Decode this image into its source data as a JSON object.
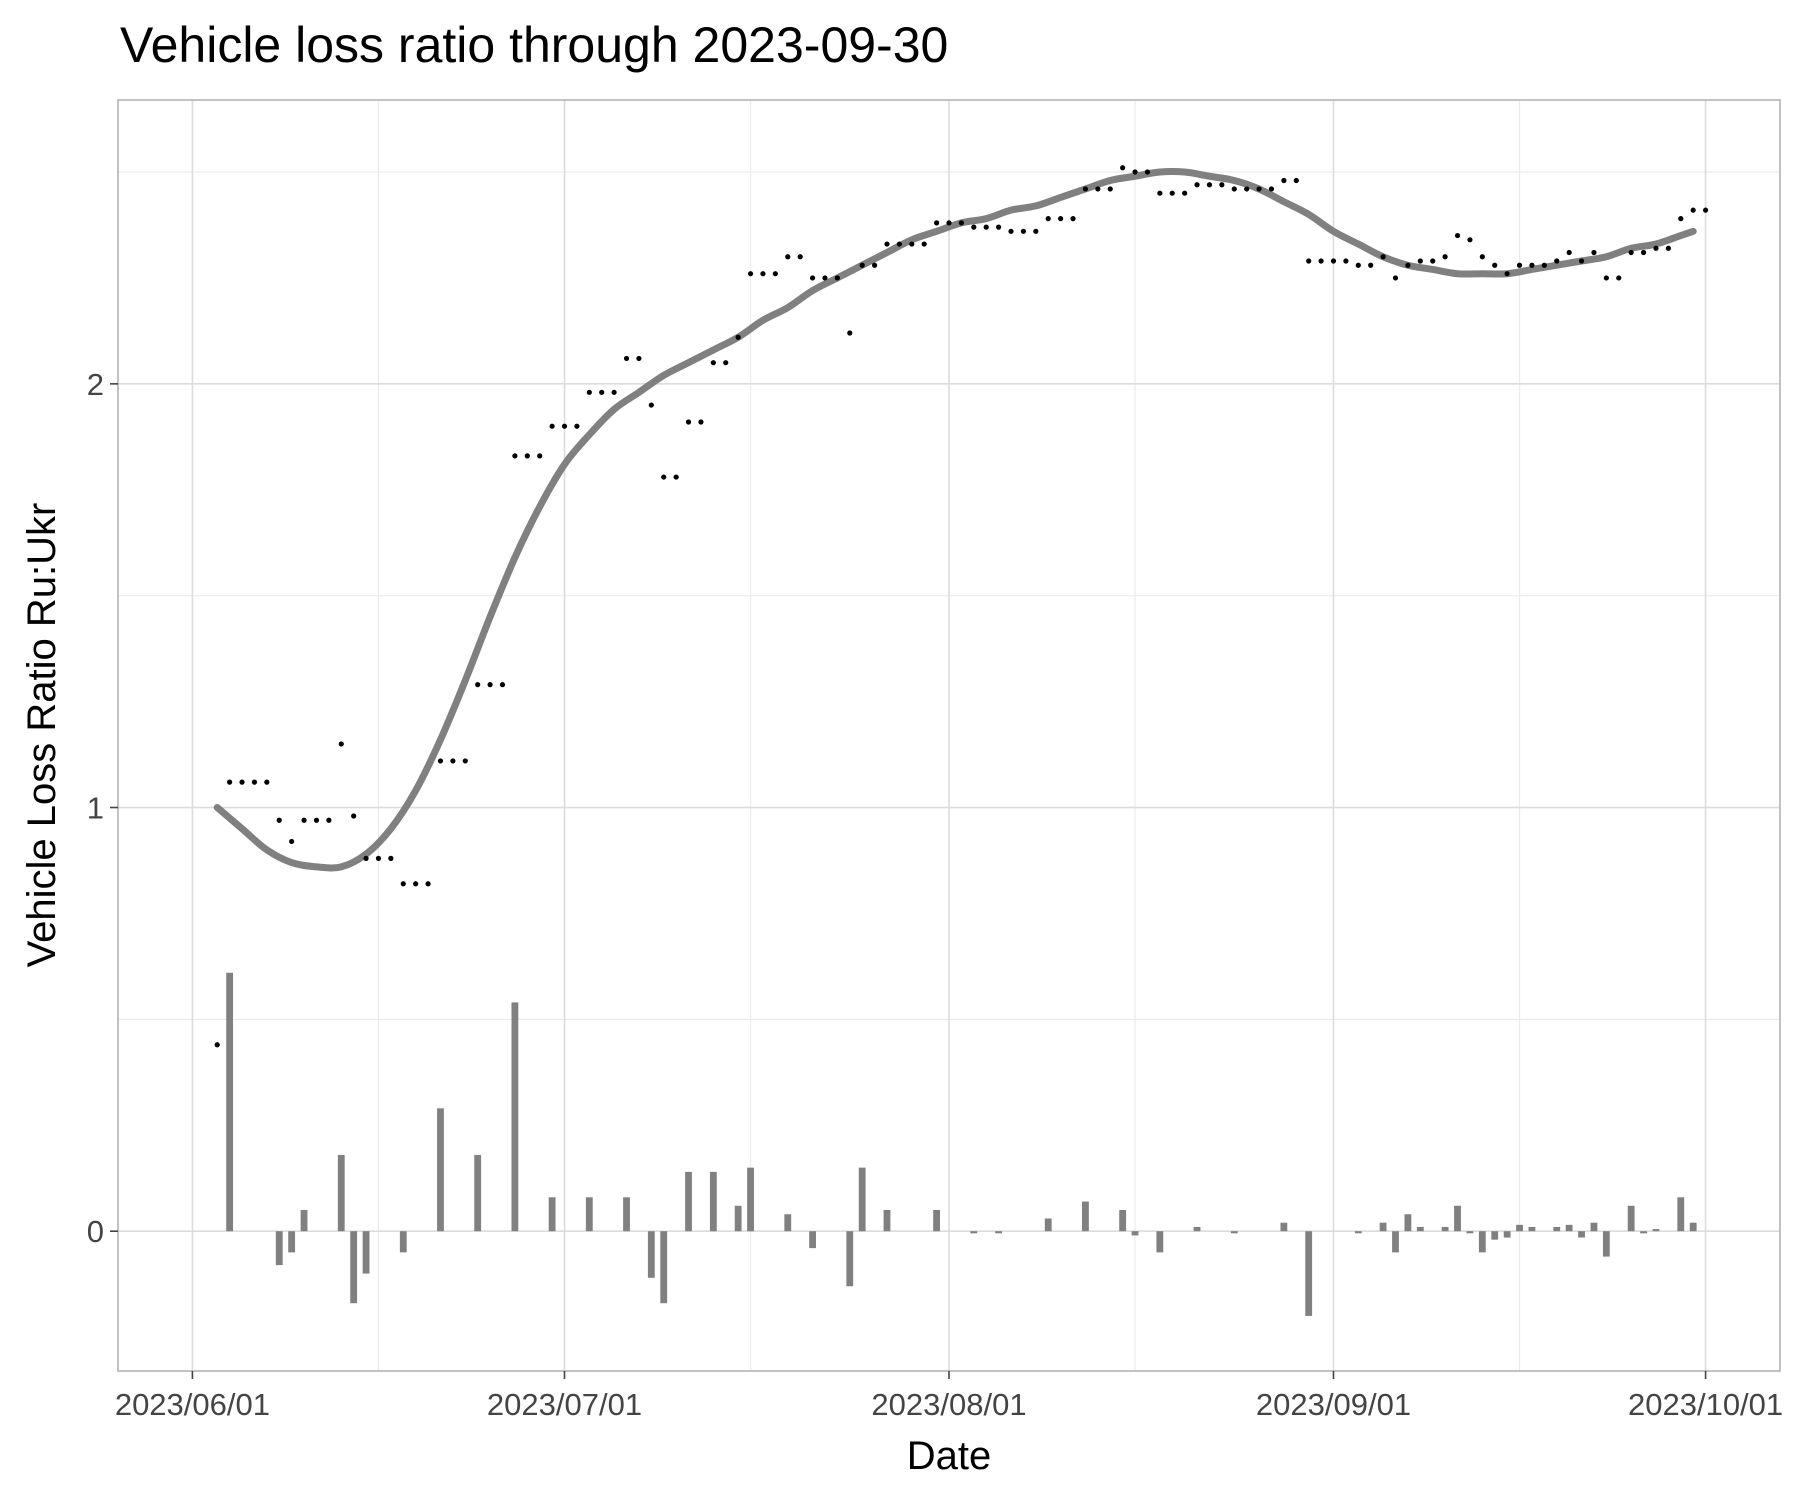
{
  "chart_data": {
    "type": "line",
    "title": "Vehicle loss ratio through 2023-09-30",
    "xlabel": "Date",
    "ylabel": "Vehicle Loss Ratio Ru:Ukr",
    "x_range": [
      "2023-05-26",
      "2023-10-07"
    ],
    "x_ticks": [
      {
        "date": "2023-06-01",
        "label": "2023/06/01"
      },
      {
        "date": "2023-07-01",
        "label": "2023/07/01"
      },
      {
        "date": "2023-08-01",
        "label": "2023/08/01"
      },
      {
        "date": "2023-09-01",
        "label": "2023/09/01"
      },
      {
        "date": "2023-10-01",
        "label": "2023/10/01"
      }
    ],
    "x_minor_ticks": [
      "2023-06-16",
      "2023-07-16",
      "2023-08-16",
      "2023-09-16"
    ],
    "ylim": [
      -0.33,
      2.67
    ],
    "y_ticks": [
      0,
      1,
      2
    ],
    "y_minor_ticks": [
      0.5,
      1.5,
      2.5
    ],
    "grid": true,
    "legend": "none",
    "colors": {
      "trend": "#808080",
      "bars": "#808080",
      "points": "#000000"
    },
    "series": [
      {
        "kind": "points",
        "data": [
          [
            "2023-06-03",
            0.44
          ],
          [
            "2023-06-04",
            1.06
          ],
          [
            "2023-06-05",
            1.06
          ],
          [
            "2023-06-06",
            1.06
          ],
          [
            "2023-06-07",
            1.06
          ],
          [
            "2023-06-08",
            0.97
          ],
          [
            "2023-06-09",
            0.92
          ],
          [
            "2023-06-10",
            0.97
          ],
          [
            "2023-06-11",
            0.97
          ],
          [
            "2023-06-12",
            0.97
          ],
          [
            "2023-06-13",
            1.15
          ],
          [
            "2023-06-14",
            0.98
          ],
          [
            "2023-06-15",
            0.88
          ],
          [
            "2023-06-16",
            0.88
          ],
          [
            "2023-06-17",
            0.88
          ],
          [
            "2023-06-18",
            0.82
          ],
          [
            "2023-06-19",
            0.82
          ],
          [
            "2023-06-20",
            0.82
          ],
          [
            "2023-06-21",
            1.11
          ],
          [
            "2023-06-22",
            1.11
          ],
          [
            "2023-06-23",
            1.11
          ],
          [
            "2023-06-24",
            1.29
          ],
          [
            "2023-06-25",
            1.29
          ],
          [
            "2023-06-26",
            1.29
          ],
          [
            "2023-06-27",
            1.83
          ],
          [
            "2023-06-28",
            1.83
          ],
          [
            "2023-06-29",
            1.83
          ],
          [
            "2023-06-30",
            1.9
          ],
          [
            "2023-07-01",
            1.9
          ],
          [
            "2023-07-02",
            1.9
          ],
          [
            "2023-07-03",
            1.98
          ],
          [
            "2023-07-04",
            1.98
          ],
          [
            "2023-07-05",
            1.98
          ],
          [
            "2023-07-06",
            2.06
          ],
          [
            "2023-07-07",
            2.06
          ],
          [
            "2023-07-08",
            1.95
          ],
          [
            "2023-07-09",
            1.78
          ],
          [
            "2023-07-10",
            1.78
          ],
          [
            "2023-07-11",
            1.91
          ],
          [
            "2023-07-12",
            1.91
          ],
          [
            "2023-07-13",
            2.05
          ],
          [
            "2023-07-14",
            2.05
          ],
          [
            "2023-07-15",
            2.11
          ],
          [
            "2023-07-16",
            2.26
          ],
          [
            "2023-07-17",
            2.26
          ],
          [
            "2023-07-18",
            2.26
          ],
          [
            "2023-07-19",
            2.3
          ],
          [
            "2023-07-20",
            2.3
          ],
          [
            "2023-07-21",
            2.25
          ],
          [
            "2023-07-22",
            2.25
          ],
          [
            "2023-07-23",
            2.25
          ],
          [
            "2023-07-24",
            2.12
          ],
          [
            "2023-07-25",
            2.28
          ],
          [
            "2023-07-26",
            2.28
          ],
          [
            "2023-07-27",
            2.33
          ],
          [
            "2023-07-28",
            2.33
          ],
          [
            "2023-07-29",
            2.33
          ],
          [
            "2023-07-30",
            2.33
          ],
          [
            "2023-07-31",
            2.38
          ],
          [
            "2023-08-01",
            2.38
          ],
          [
            "2023-08-02",
            2.38
          ],
          [
            "2023-08-03",
            2.37
          ],
          [
            "2023-08-04",
            2.37
          ],
          [
            "2023-08-05",
            2.37
          ],
          [
            "2023-08-06",
            2.36
          ],
          [
            "2023-08-07",
            2.36
          ],
          [
            "2023-08-08",
            2.36
          ],
          [
            "2023-08-09",
            2.39
          ],
          [
            "2023-08-10",
            2.39
          ],
          [
            "2023-08-11",
            2.39
          ],
          [
            "2023-08-12",
            2.46
          ],
          [
            "2023-08-13",
            2.46
          ],
          [
            "2023-08-14",
            2.46
          ],
          [
            "2023-08-15",
            2.51
          ],
          [
            "2023-08-16",
            2.5
          ],
          [
            "2023-08-17",
            2.5
          ],
          [
            "2023-08-18",
            2.45
          ],
          [
            "2023-08-19",
            2.45
          ],
          [
            "2023-08-20",
            2.45
          ],
          [
            "2023-08-21",
            2.47
          ],
          [
            "2023-08-22",
            2.47
          ],
          [
            "2023-08-23",
            2.47
          ],
          [
            "2023-08-24",
            2.46
          ],
          [
            "2023-08-25",
            2.46
          ],
          [
            "2023-08-26",
            2.46
          ],
          [
            "2023-08-27",
            2.46
          ],
          [
            "2023-08-28",
            2.48
          ],
          [
            "2023-08-29",
            2.48
          ],
          [
            "2023-08-30",
            2.29
          ],
          [
            "2023-08-31",
            2.29
          ],
          [
            "2023-09-01",
            2.29
          ],
          [
            "2023-09-02",
            2.29
          ],
          [
            "2023-09-03",
            2.28
          ],
          [
            "2023-09-04",
            2.28
          ],
          [
            "2023-09-05",
            2.3
          ],
          [
            "2023-09-06",
            2.25
          ],
          [
            "2023-09-07",
            2.28
          ],
          [
            "2023-09-08",
            2.29
          ],
          [
            "2023-09-09",
            2.29
          ],
          [
            "2023-09-10",
            2.3
          ],
          [
            "2023-09-11",
            2.35
          ],
          [
            "2023-09-12",
            2.34
          ],
          [
            "2023-09-13",
            2.3
          ],
          [
            "2023-09-14",
            2.28
          ],
          [
            "2023-09-15",
            2.26
          ],
          [
            "2023-09-16",
            2.28
          ],
          [
            "2023-09-17",
            2.28
          ],
          [
            "2023-09-18",
            2.28
          ],
          [
            "2023-09-19",
            2.29
          ],
          [
            "2023-09-20",
            2.31
          ],
          [
            "2023-09-21",
            2.29
          ],
          [
            "2023-09-22",
            2.31
          ],
          [
            "2023-09-23",
            2.25
          ],
          [
            "2023-09-24",
            2.25
          ],
          [
            "2023-09-25",
            2.31
          ],
          [
            "2023-09-26",
            2.31
          ],
          [
            "2023-09-27",
            2.32
          ],
          [
            "2023-09-28",
            2.32
          ],
          [
            "2023-09-29",
            2.39
          ],
          [
            "2023-09-30",
            2.41
          ],
          [
            "2023-10-01",
            2.41
          ]
        ]
      },
      {
        "kind": "trend",
        "data": [
          [
            "2023-06-03",
            1.0
          ],
          [
            "2023-06-05",
            0.95
          ],
          [
            "2023-06-07",
            0.9
          ],
          [
            "2023-06-09",
            0.87
          ],
          [
            "2023-06-11",
            0.86
          ],
          [
            "2023-06-13",
            0.86
          ],
          [
            "2023-06-15",
            0.89
          ],
          [
            "2023-06-17",
            0.95
          ],
          [
            "2023-06-19",
            1.04
          ],
          [
            "2023-06-21",
            1.16
          ],
          [
            "2023-06-23",
            1.3
          ],
          [
            "2023-06-25",
            1.45
          ],
          [
            "2023-06-27",
            1.59
          ],
          [
            "2023-06-29",
            1.71
          ],
          [
            "2023-07-01",
            1.81
          ],
          [
            "2023-07-03",
            1.88
          ],
          [
            "2023-07-05",
            1.94
          ],
          [
            "2023-07-07",
            1.98
          ],
          [
            "2023-07-09",
            2.02
          ],
          [
            "2023-07-11",
            2.05
          ],
          [
            "2023-07-13",
            2.08
          ],
          [
            "2023-07-15",
            2.11
          ],
          [
            "2023-07-17",
            2.15
          ],
          [
            "2023-07-19",
            2.18
          ],
          [
            "2023-07-21",
            2.22
          ],
          [
            "2023-07-23",
            2.25
          ],
          [
            "2023-07-25",
            2.28
          ],
          [
            "2023-07-27",
            2.31
          ],
          [
            "2023-07-29",
            2.34
          ],
          [
            "2023-07-31",
            2.36
          ],
          [
            "2023-08-02",
            2.38
          ],
          [
            "2023-08-04",
            2.39
          ],
          [
            "2023-08-06",
            2.41
          ],
          [
            "2023-08-08",
            2.42
          ],
          [
            "2023-08-10",
            2.44
          ],
          [
            "2023-08-12",
            2.46
          ],
          [
            "2023-08-14",
            2.48
          ],
          [
            "2023-08-16",
            2.49
          ],
          [
            "2023-08-18",
            2.5
          ],
          [
            "2023-08-20",
            2.5
          ],
          [
            "2023-08-22",
            2.49
          ],
          [
            "2023-08-24",
            2.48
          ],
          [
            "2023-08-26",
            2.46
          ],
          [
            "2023-08-28",
            2.43
          ],
          [
            "2023-08-30",
            2.4
          ],
          [
            "2023-09-01",
            2.36
          ],
          [
            "2023-09-03",
            2.33
          ],
          [
            "2023-09-05",
            2.3
          ],
          [
            "2023-09-07",
            2.28
          ],
          [
            "2023-09-09",
            2.27
          ],
          [
            "2023-09-11",
            2.26
          ],
          [
            "2023-09-13",
            2.26
          ],
          [
            "2023-09-15",
            2.26
          ],
          [
            "2023-09-17",
            2.27
          ],
          [
            "2023-09-19",
            2.28
          ],
          [
            "2023-09-21",
            2.29
          ],
          [
            "2023-09-23",
            2.3
          ],
          [
            "2023-09-25",
            2.32
          ],
          [
            "2023-09-27",
            2.33
          ],
          [
            "2023-09-29",
            2.35
          ],
          [
            "2023-09-30",
            2.36
          ]
        ]
      },
      {
        "kind": "bars",
        "data": [
          [
            "2023-06-04",
            0.61
          ],
          [
            "2023-06-08",
            -0.08
          ],
          [
            "2023-06-09",
            -0.05
          ],
          [
            "2023-06-10",
            0.05
          ],
          [
            "2023-06-13",
            0.18
          ],
          [
            "2023-06-14",
            -0.17
          ],
          [
            "2023-06-15",
            -0.1
          ],
          [
            "2023-06-18",
            -0.05
          ],
          [
            "2023-06-21",
            0.29
          ],
          [
            "2023-06-24",
            0.18
          ],
          [
            "2023-06-27",
            0.54
          ],
          [
            "2023-06-30",
            0.08
          ],
          [
            "2023-07-03",
            0.08
          ],
          [
            "2023-07-06",
            0.08
          ],
          [
            "2023-07-08",
            -0.11
          ],
          [
            "2023-07-09",
            -0.17
          ],
          [
            "2023-07-11",
            0.14
          ],
          [
            "2023-07-13",
            0.14
          ],
          [
            "2023-07-15",
            0.06
          ],
          [
            "2023-07-16",
            0.15
          ],
          [
            "2023-07-19",
            0.04
          ],
          [
            "2023-07-21",
            -0.04
          ],
          [
            "2023-07-24",
            -0.13
          ],
          [
            "2023-07-25",
            0.15
          ],
          [
            "2023-07-27",
            0.05
          ],
          [
            "2023-07-31",
            0.05
          ],
          [
            "2023-08-03",
            -0.005
          ],
          [
            "2023-08-05",
            -0.005
          ],
          [
            "2023-08-09",
            0.03
          ],
          [
            "2023-08-12",
            0.07
          ],
          [
            "2023-08-15",
            0.05
          ],
          [
            "2023-08-16",
            -0.01
          ],
          [
            "2023-08-18",
            -0.05
          ],
          [
            "2023-08-21",
            0.01
          ],
          [
            "2023-08-24",
            -0.005
          ],
          [
            "2023-08-28",
            0.02
          ],
          [
            "2023-08-30",
            -0.2
          ],
          [
            "2023-09-03",
            -0.005
          ],
          [
            "2023-09-05",
            0.02
          ],
          [
            "2023-09-06",
            -0.05
          ],
          [
            "2023-09-07",
            0.04
          ],
          [
            "2023-09-08",
            0.01
          ],
          [
            "2023-09-10",
            0.01
          ],
          [
            "2023-09-11",
            0.06
          ],
          [
            "2023-09-12",
            -0.005
          ],
          [
            "2023-09-13",
            -0.05
          ],
          [
            "2023-09-14",
            -0.02
          ],
          [
            "2023-09-15",
            -0.015
          ],
          [
            "2023-09-16",
            0.015
          ],
          [
            "2023-09-17",
            0.01
          ],
          [
            "2023-09-19",
            0.01
          ],
          [
            "2023-09-20",
            0.015
          ],
          [
            "2023-09-21",
            -0.015
          ],
          [
            "2023-09-22",
            0.02
          ],
          [
            "2023-09-23",
            -0.06
          ],
          [
            "2023-09-25",
            0.06
          ],
          [
            "2023-09-26",
            -0.005
          ],
          [
            "2023-09-27",
            0.005
          ],
          [
            "2023-09-29",
            0.08
          ],
          [
            "2023-09-30",
            0.02
          ]
        ]
      }
    ]
  }
}
